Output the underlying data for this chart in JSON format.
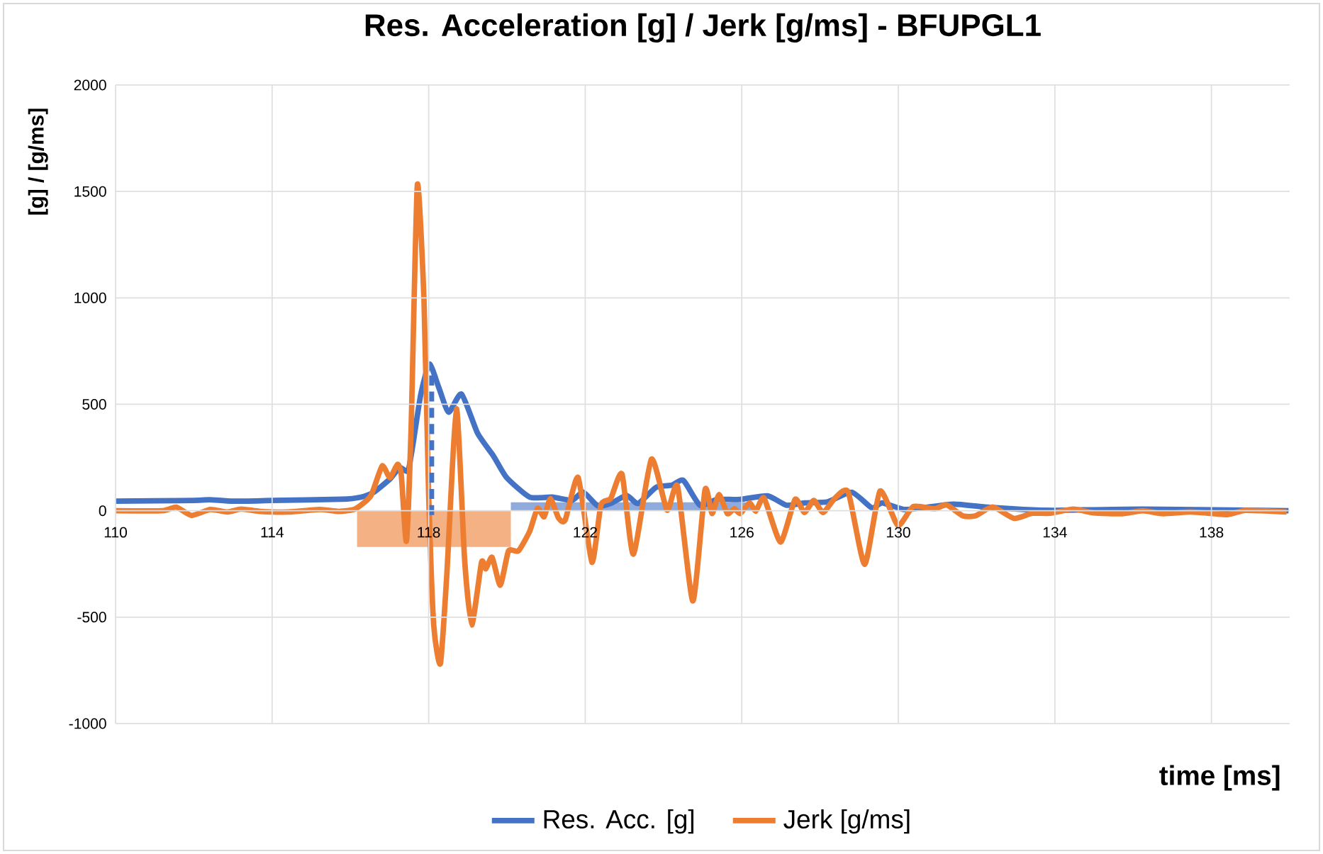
{
  "chart_data": {
    "type": "line",
    "title": "Res. Acceleration [g] / Jerk [g/ms] - BFUPGL1",
    "xlabel": "time [ms]",
    "ylabel": "[g] / [g/ms]",
    "xlim": [
      110,
      140
    ],
    "xticks": [
      110,
      114,
      118,
      122,
      126,
      130,
      134,
      138
    ],
    "ylim": [
      -1000,
      2000
    ],
    "yticks": [
      -1000,
      -500,
      0,
      500,
      1000,
      1500,
      2000
    ],
    "grid": true,
    "legend": "bottom",
    "series": [
      {
        "type": "area",
        "color": "#f4b183",
        "x": [
          116.17,
          120.1
        ],
        "values": [
          -170,
          -170
        ]
      },
      {
        "type": "area",
        "color": "#8faadc",
        "x": [
          120.1,
          126.25
        ],
        "values": [
          40,
          40
        ]
      },
      {
        "name": "Res. Acc. [g]",
        "color": "#4472c4",
        "x": [
          110,
          112,
          112.4,
          113,
          114,
          115.77,
          116.27,
          116.6,
          117.01,
          117.26,
          117.47,
          117.59,
          117.8,
          118.02,
          118.26,
          118.51,
          118.84,
          119.25,
          119.66,
          119.99,
          120.58,
          121.16,
          121.66,
          121.95,
          122.32,
          122.65,
          123.06,
          123.35,
          123.81,
          124.21,
          124.51,
          124.93,
          125.36,
          125.96,
          126.66,
          127.14,
          127.6,
          128.2,
          128.81,
          129.32,
          129.59,
          130.14,
          130.62,
          131.41,
          132.21,
          133.2,
          134.01,
          136.24,
          139.97
        ],
        "values": [
          45,
          48,
          52,
          45,
          48,
          54,
          64,
          87,
          149,
          202,
          187,
          302,
          548,
          689,
          578,
          463,
          548,
          364,
          256,
          156,
          64,
          64,
          49,
          87,
          23,
          34,
          72,
          34,
          110,
          120,
          142,
          26,
          53,
          53,
          70,
          26,
          37,
          42,
          87,
          14,
          37,
          6,
          14,
          31,
          18,
          6,
          2,
          8,
          0
        ]
      },
      {
        "name": "Jerk [g/ms]",
        "color": "#ed7d31",
        "x": [
          110,
          111.2,
          111.55,
          111.94,
          112.42,
          112.85,
          113.21,
          113.7,
          114.42,
          115.21,
          115.7,
          116.12,
          116.52,
          116.81,
          117.01,
          117.2,
          117.3,
          117.43,
          117.55,
          117.71,
          117.88,
          118.0,
          118.13,
          118.3,
          118.46,
          118.71,
          118.92,
          119.1,
          119.35,
          119.46,
          119.62,
          119.83,
          120.04,
          120.29,
          120.58,
          120.78,
          120.95,
          121.11,
          121.32,
          121.49,
          121.82,
          122.17,
          122.4,
          122.65,
          122.94,
          123.23,
          123.69,
          124.09,
          124.36,
          124.75,
          125.06,
          125.24,
          125.42,
          125.63,
          125.81,
          125.96,
          126.2,
          126.36,
          126.57,
          126.99,
          127.36,
          127.6,
          127.84,
          128.08,
          128.38,
          128.72,
          129.14,
          129.53,
          129.99,
          130.38,
          130.93,
          131.23,
          131.65,
          131.97,
          132.41,
          132.96,
          133.42,
          133.88,
          134.47,
          134.99,
          135.72,
          136.24,
          136.77,
          137.49,
          138.41,
          138.87,
          139.92
        ],
        "values": [
          0,
          0,
          17,
          -22,
          6,
          -6,
          8,
          -3,
          -6,
          6,
          -3,
          8,
          70,
          210,
          155,
          218,
          170,
          -143,
          380,
          1530,
          990,
          72,
          -540,
          -718,
          -311,
          479,
          -235,
          -537,
          -242,
          -273,
          -219,
          -350,
          -189,
          -189,
          -97,
          11,
          -28,
          57,
          -35,
          -43,
          156,
          -242,
          26,
          57,
          172,
          -204,
          242,
          3,
          114,
          -424,
          98,
          -13,
          76,
          -13,
          9,
          -13,
          37,
          -2,
          59,
          -147,
          53,
          -8,
          48,
          -8,
          59,
          87,
          -252,
          92,
          -69,
          20,
          9,
          28,
          -24,
          -24,
          18,
          -36,
          -12,
          -12,
          8,
          -10,
          -14,
          0,
          -14,
          -6,
          -18,
          2,
          -6
        ]
      },
      {
        "type": "line",
        "color": "#4472c4",
        "line_style": "dashed",
        "x": [
          118.07,
          118.07
        ],
        "values": [
          -20,
          650
        ]
      }
    ]
  }
}
